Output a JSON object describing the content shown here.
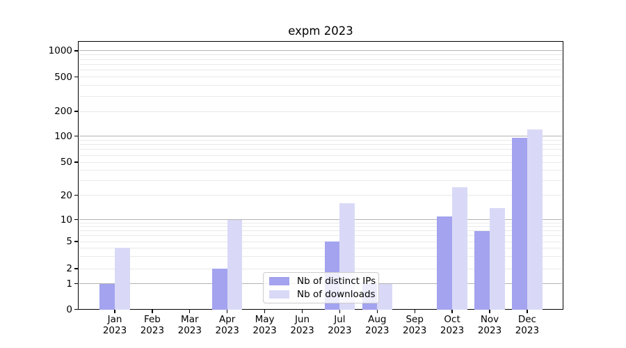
{
  "chart_data": {
    "type": "bar",
    "title": "expm 2023",
    "categories": [
      "Jan 2023",
      "Feb 2023",
      "Mar 2023",
      "Apr 2023",
      "May 2023",
      "Jun 2023",
      "Jul 2023",
      "Aug 2023",
      "Sep 2023",
      "Oct 2023",
      "Nov 2023",
      "Dec 2023"
    ],
    "series": [
      {
        "name": "Nb of distinct IPs",
        "color": "#a3a3ef",
        "values": [
          1,
          0,
          0,
          2,
          0,
          0,
          5,
          1,
          0,
          11,
          7,
          95
        ]
      },
      {
        "name": "Nb of downloads",
        "color": "#d9d9f7",
        "values": [
          4,
          0,
          0,
          10,
          0,
          0,
          16,
          1,
          0,
          25,
          14,
          120
        ]
      }
    ],
    "yscale": "symlog",
    "y_ticks": [
      0,
      1,
      2,
      5,
      10,
      20,
      50,
      100,
      200,
      500,
      1000
    ],
    "y_tick_labels": [
      "0",
      "1",
      "2",
      "5",
      "10",
      "20",
      "50",
      "100",
      "200",
      "500",
      "1000"
    ],
    "ylim": [
      0,
      1300
    ],
    "grid": true,
    "legend_position": "lower center",
    "colors": {
      "grid_major": "#b3b3b3",
      "grid_minor": "#e9e9e9",
      "axis": "#000000",
      "text": "#000000"
    }
  }
}
